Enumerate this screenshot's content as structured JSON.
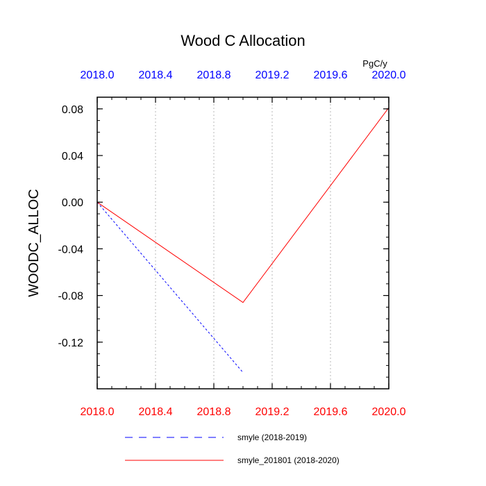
{
  "chart_data": {
    "type": "line",
    "title": "Wood C Allocation",
    "units": "PgC/y",
    "xlabel": "",
    "ylabel": "WOODC_ALLOC",
    "xlim": [
      2018.0,
      2020.0
    ],
    "ylim": [
      -0.16,
      0.09
    ],
    "x_ticks": [
      2018.0,
      2018.4,
      2018.8,
      2019.2,
      2019.6,
      2020.0
    ],
    "x_tick_labels": [
      "2018.0",
      "2018.4",
      "2018.8",
      "2019.2",
      "2019.6",
      "2020.0"
    ],
    "y_ticks": [
      0.08,
      0.04,
      0.0,
      -0.04,
      -0.08,
      -0.12
    ],
    "y_tick_labels": [
      "0.08",
      "0.04",
      "0.00",
      "-0.04",
      "-0.08",
      "-0.12"
    ],
    "grid": "vertical dotted at x ticks",
    "legend_position": "bottom",
    "top_axis_color": "#0000ff",
    "bottom_axis_color": "#ff0000",
    "series": [
      {
        "name": "smyle (2018-2019)",
        "color": "#0000ff",
        "dash": "dashed",
        "x": [
          2018.0,
          2019.0
        ],
        "y": [
          0.0,
          -0.146
        ]
      },
      {
        "name": "smyle_201801 (2018-2020)",
        "color": "#ff0000",
        "dash": "solid",
        "x": [
          2018.0,
          2019.0,
          2020.0
        ],
        "y": [
          0.0,
          -0.086,
          0.081
        ]
      }
    ]
  }
}
